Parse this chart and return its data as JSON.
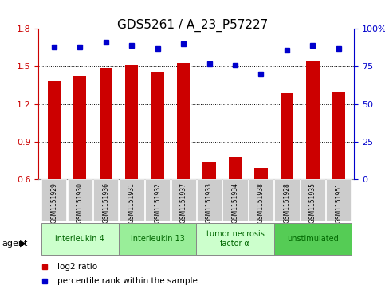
{
  "title": "GDS5261 / A_23_P57227",
  "samples": [
    "GSM1151929",
    "GSM1151930",
    "GSM1151936",
    "GSM1151931",
    "GSM1151932",
    "GSM1151937",
    "GSM1151933",
    "GSM1151934",
    "GSM1151938",
    "GSM1151928",
    "GSM1151935",
    "GSM1151951"
  ],
  "log2_ratio": [
    1.38,
    1.42,
    1.49,
    1.51,
    1.46,
    1.53,
    0.74,
    0.78,
    0.69,
    1.29,
    1.55,
    1.3
  ],
  "percentile": [
    88,
    88,
    91,
    89,
    87,
    90,
    77,
    76,
    70,
    86,
    89,
    87
  ],
  "bar_color": "#cc0000",
  "dot_color": "#0000cc",
  "ylim_left": [
    0.6,
    1.8
  ],
  "ylim_right": [
    0,
    100
  ],
  "yticks_left": [
    0.6,
    0.9,
    1.2,
    1.5,
    1.8
  ],
  "yticks_right": [
    0,
    25,
    50,
    75,
    100
  ],
  "ytick_right_labels": [
    "0",
    "25",
    "50",
    "75",
    "100%"
  ],
  "agents": [
    {
      "label": "interleukin 4",
      "indices": [
        0,
        1,
        2
      ],
      "color": "#ccffcc"
    },
    {
      "label": "interleukin 13",
      "indices": [
        3,
        4,
        5
      ],
      "color": "#99ee99"
    },
    {
      "label": "tumor necrosis\nfactor-α",
      "indices": [
        6,
        7,
        8
      ],
      "color": "#ccffcc"
    },
    {
      "label": "unstimulated",
      "indices": [
        9,
        10,
        11
      ],
      "color": "#55cc55"
    }
  ],
  "legend_log2_color": "#cc0000",
  "legend_pct_color": "#0000cc",
  "baseline": 0.6,
  "sample_box_color": "#cccccc",
  "background_color": "#ffffff",
  "grid_lines": [
    0.9,
    1.2,
    1.5
  ],
  "agent_label": "agent"
}
